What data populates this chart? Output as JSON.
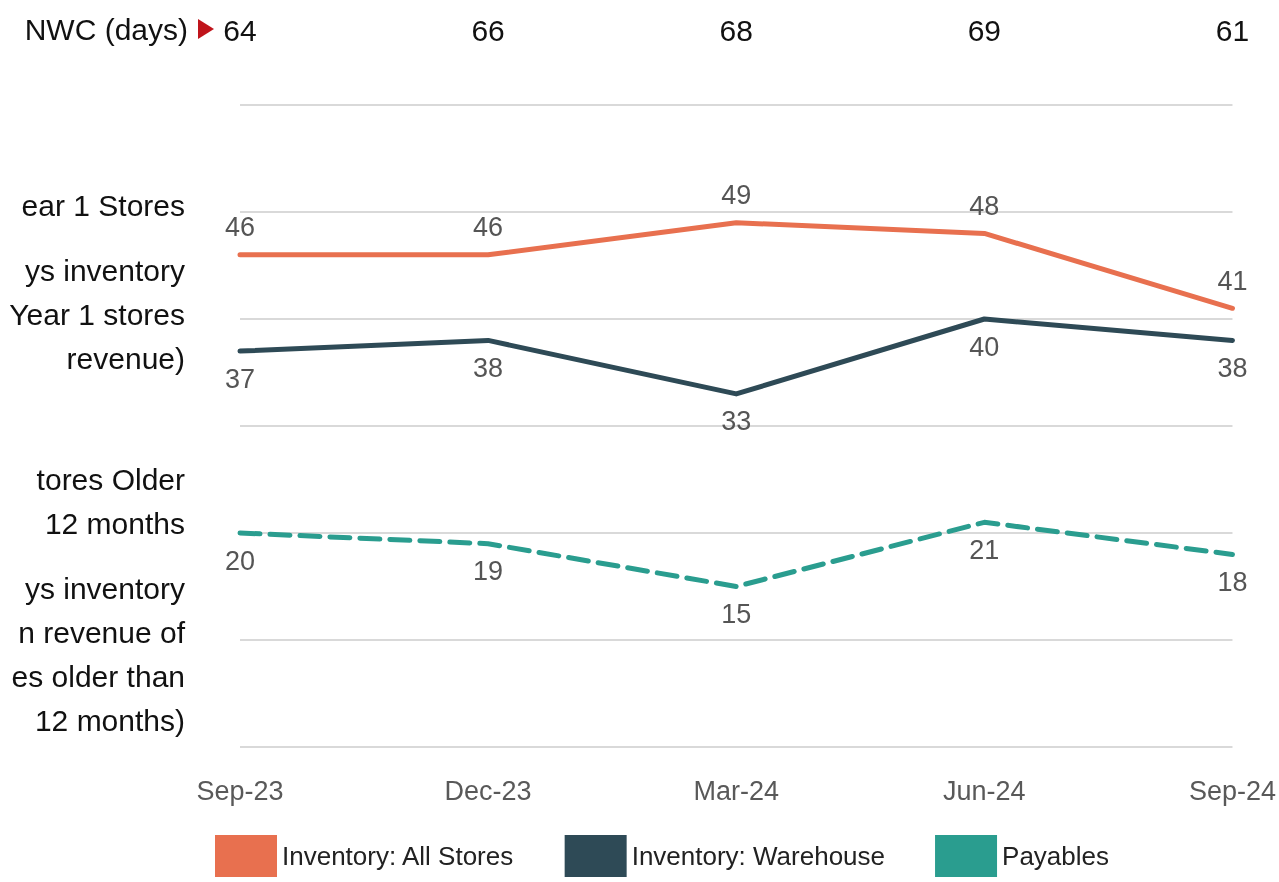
{
  "chart_data": {
    "type": "line",
    "categories": [
      "Sep-23",
      "Dec-23",
      "Mar-24",
      "Jun-24",
      "Sep-24"
    ],
    "series": [
      {
        "name": "Inventory: All Stores",
        "color": "#e8704f",
        "values": [
          46,
          46,
          49,
          48,
          41
        ]
      },
      {
        "name": "Inventory: Warehouse",
        "color": "#2e4a56",
        "values": [
          37,
          38,
          33,
          40,
          38
        ]
      },
      {
        "name": "Payables",
        "color": "#2a9d8f",
        "values": [
          20,
          19,
          15,
          21,
          18
        ],
        "line_style": "dashed"
      }
    ],
    "ylim": [
      0,
      60
    ],
    "yticks": [
      {
        "value": 0,
        "label": null
      },
      {
        "value": 10,
        "label": null
      },
      {
        "value": 20,
        "label": null
      },
      {
        "value": 30,
        "label": null
      },
      {
        "value": 40,
        "label": null
      },
      {
        "value": 50,
        "label": null
      },
      {
        "value": 60,
        "label": null
      }
    ],
    "tick_labels": "x",
    "grid": "y",
    "legend": "bottom",
    "data_labels": true,
    "marker": "none",
    "line_style": "solid",
    "annotations": [
      "NWC (days)",
      "64",
      "66",
      "68",
      "69",
      "61",
      "ear 1 Stores",
      "ys inventory\nYear 1 stores\nrevenue)",
      "tores Older\n12 months",
      "ys inventory\nn revenue of\nes older than\n12 months)"
    ]
  }
}
